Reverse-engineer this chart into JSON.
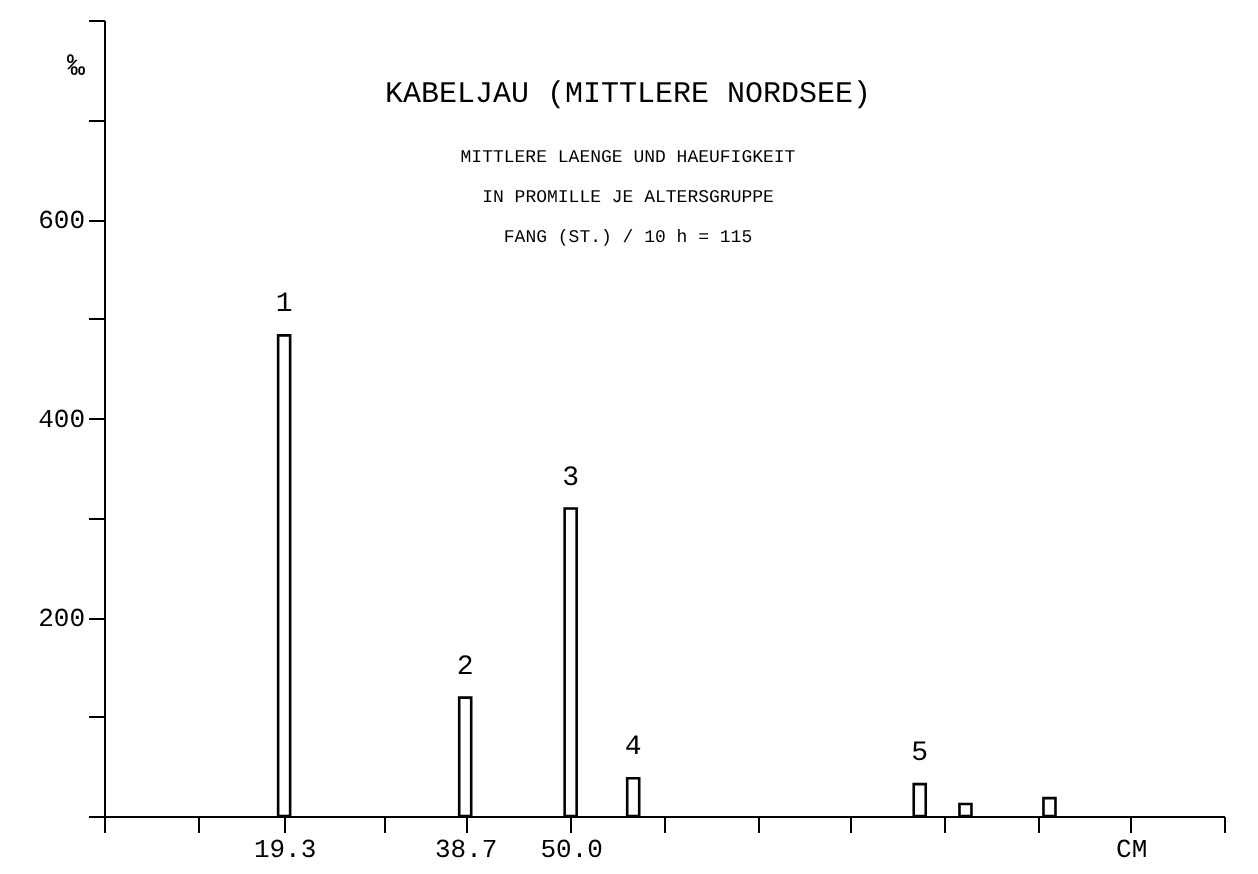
{
  "chart_data": {
    "type": "bar",
    "title": "KABELJAU (MITTLERE NORDSEE)",
    "subtitle": [
      "MITTLERE LAENGE UND HAEUFIGKEIT",
      "IN PROMILLE JE ALTERSGRUPPE",
      "FANG (ST.) / 10 h = 115"
    ],
    "ylabel": "‰",
    "x": [
      19.3,
      38.7,
      50.0,
      56.7,
      87.4,
      92.3,
      101.3
    ],
    "series": [
      {
        "color": "#000000",
        "values": [
          483,
          119,
          309,
          38,
          32,
          12,
          18
        ]
      }
    ],
    "annotations": [
      {
        "text": "1",
        "x": 19.3,
        "y": 483
      },
      {
        "text": "2",
        "x": 38.7,
        "y": 119
      },
      {
        "text": "3",
        "x": 50.0,
        "y": 309
      },
      {
        "text": "4",
        "x": 56.7,
        "y": 38
      },
      {
        "text": "5",
        "x": 87.4,
        "y": 32
      }
    ],
    "xlim": [
      0,
      120
    ],
    "xticks": [
      {
        "value": 0,
        "label": null
      },
      {
        "value": 10,
        "label": null
      },
      {
        "value": 19.3,
        "label": "19.3"
      },
      {
        "value": 30,
        "label": null
      },
      {
        "value": 38.7,
        "label": "38.7"
      },
      {
        "value": 50,
        "label": "50.0"
      },
      {
        "value": 60,
        "label": null
      },
      {
        "value": 70,
        "label": null
      },
      {
        "value": 80,
        "label": null
      },
      {
        "value": 90,
        "label": null
      },
      {
        "value": 100,
        "label": null
      },
      {
        "value": 110,
        "label": "CM"
      },
      {
        "value": 120,
        "label": null
      }
    ],
    "ylim": [
      0,
      800
    ],
    "yticks": [
      {
        "value": 0,
        "label": null
      },
      {
        "value": 100,
        "label": null
      },
      200,
      {
        "value": 300,
        "label": null
      },
      400,
      {
        "value": 500,
        "label": null
      },
      600,
      {
        "value": 700,
        "label": null
      },
      {
        "value": 800,
        "label": null
      }
    ],
    "grid": false
  }
}
